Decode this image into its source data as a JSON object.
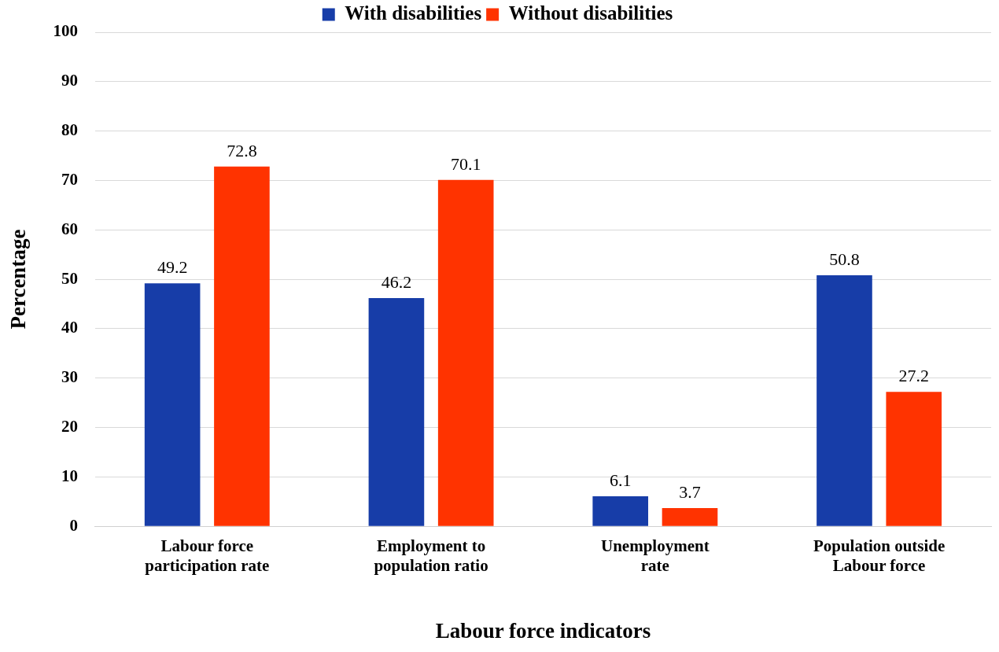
{
  "chart_data": {
    "type": "bar",
    "xlabel": "Labour force indicators",
    "ylabel": "Percentage",
    "categories": [
      "Labour force\nparticipation rate",
      "Employment to\npopulation ratio",
      "Unemployment\nrate",
      "Population outside\nLabour force"
    ],
    "series": [
      {
        "name": "With disabilities",
        "color": "#173da8",
        "values": [
          49.2,
          46.2,
          6.1,
          50.8
        ]
      },
      {
        "name": "Without disabilities",
        "color": "#ff3300",
        "values": [
          72.8,
          70.1,
          3.7,
          27.2
        ]
      }
    ],
    "ylim": [
      0,
      100
    ],
    "yticks": [
      0,
      10,
      20,
      30,
      40,
      50,
      60,
      70,
      80,
      90,
      100
    ],
    "grid": "y",
    "legend": "top",
    "data_labels": true
  }
}
